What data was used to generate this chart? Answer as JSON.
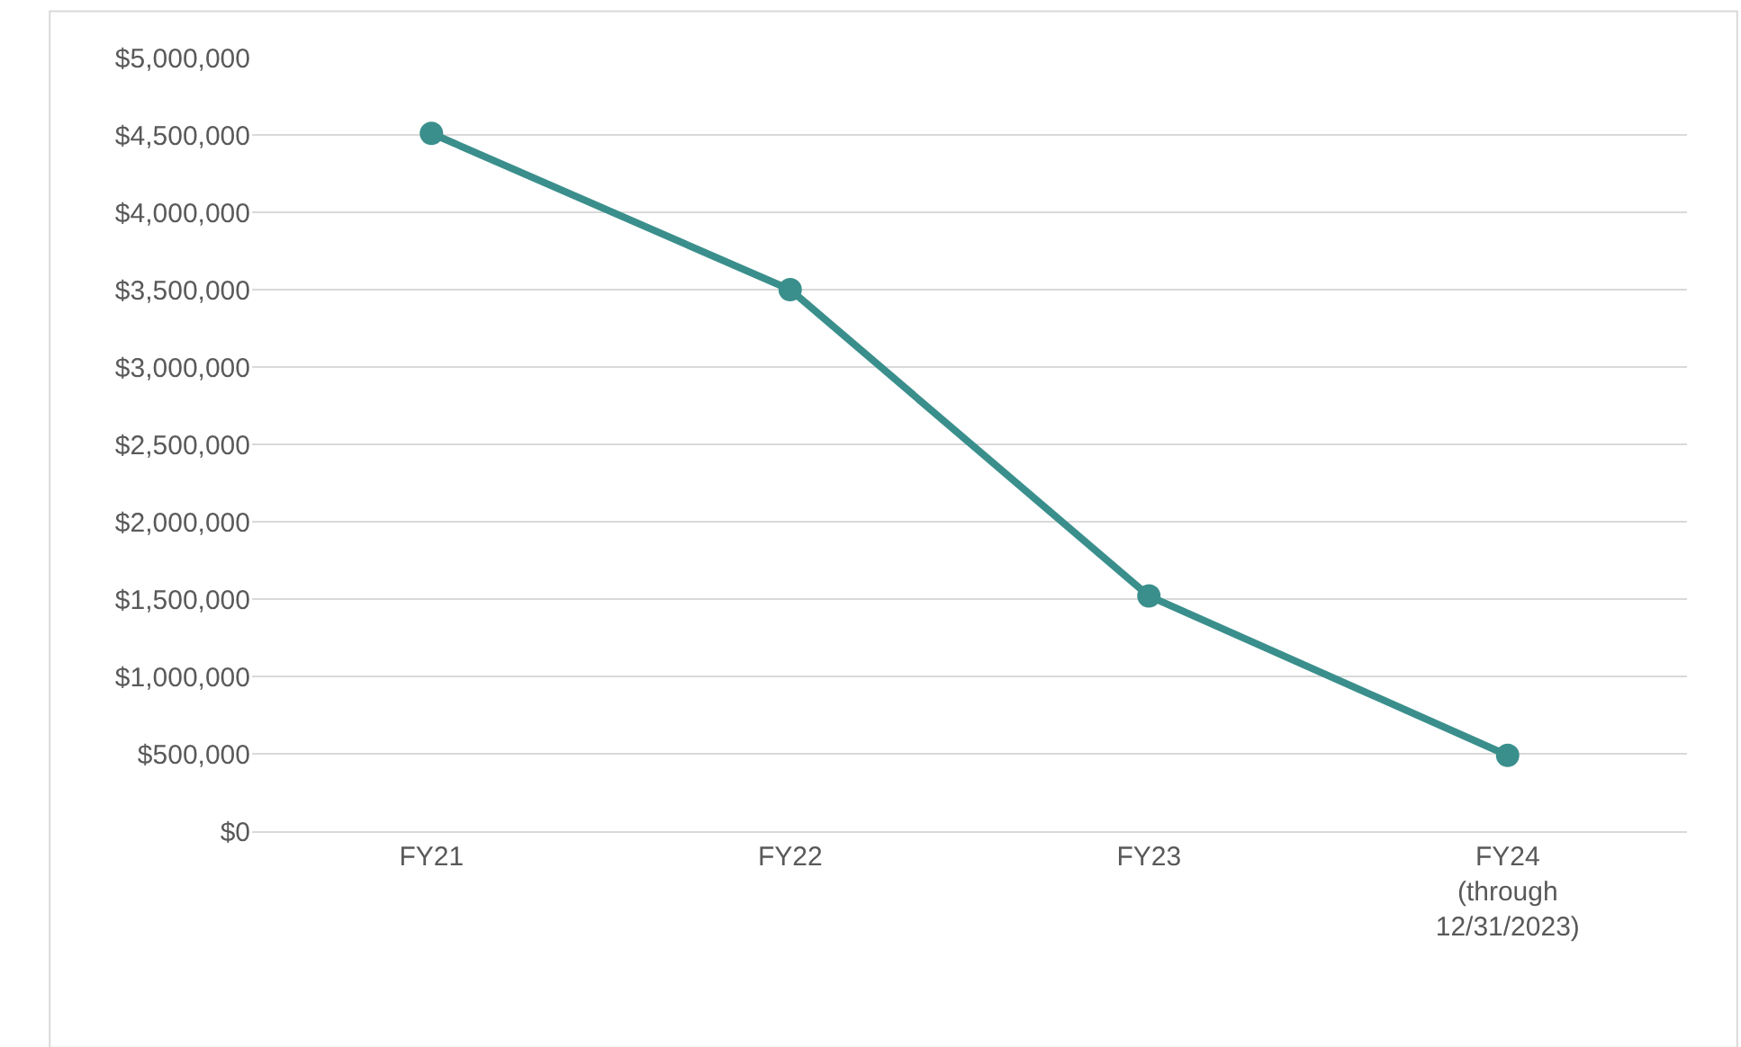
{
  "chart_data": {
    "type": "line",
    "categories": [
      "FY21",
      "FY22",
      "FY23",
      "FY24 (through 12/31/2023)"
    ],
    "series": [
      {
        "color": "#3a8f8c",
        "values": [
          4510000,
          3500000,
          1520000,
          490000
        ]
      }
    ],
    "ylim": [
      0,
      5000000
    ],
    "yticks": [
      {
        "value": 0,
        "label": "$0"
      },
      {
        "value": 500000,
        "label": "$500,000"
      },
      {
        "value": 1000000,
        "label": "$1,000,000"
      },
      {
        "value": 1500000,
        "label": "$1,500,000"
      },
      {
        "value": 2000000,
        "label": "$2,000,000"
      },
      {
        "value": 2500000,
        "label": "$2,500,000"
      },
      {
        "value": 3000000,
        "label": "$3,000,000"
      },
      {
        "value": 3500000,
        "label": "$3,500,000"
      },
      {
        "value": 4000000,
        "label": "$4,000,000"
      },
      {
        "value": 4500000,
        "label": "$4,500,000"
      },
      {
        "value": 5000000,
        "label": "$5,000,000"
      }
    ],
    "grid": "y",
    "legend": false,
    "marker": "circle",
    "line_style": "solid"
  }
}
